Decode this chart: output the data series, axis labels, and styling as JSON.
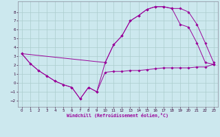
{
  "xlabel": "Windchill (Refroidissement éolien,°C)",
  "background_color": "#cce8ee",
  "line_color": "#990099",
  "grid_color": "#aacccc",
  "xlim": [
    -0.5,
    23.5
  ],
  "ylim": [
    -2.7,
    9.2
  ],
  "xticks": [
    0,
    1,
    2,
    3,
    4,
    5,
    6,
    7,
    8,
    9,
    10,
    11,
    12,
    13,
    14,
    15,
    16,
    17,
    18,
    19,
    20,
    21,
    22,
    23
  ],
  "yticks": [
    -2,
    -1,
    0,
    1,
    2,
    3,
    4,
    5,
    6,
    7,
    8
  ],
  "line1_x": [
    0,
    1,
    2,
    3,
    4,
    5,
    6,
    7,
    8,
    9,
    10,
    11,
    12,
    13,
    14,
    15,
    16,
    17,
    18,
    19,
    20,
    21,
    22,
    23
  ],
  "line1_y": [
    3.3,
    2.2,
    1.4,
    0.8,
    0.2,
    -0.2,
    -0.5,
    -1.8,
    -0.5,
    -1.0,
    1.2,
    1.3,
    1.3,
    1.4,
    1.4,
    1.5,
    1.6,
    1.7,
    1.7,
    1.7,
    1.7,
    1.8,
    1.8,
    2.1
  ],
  "line2_x": [
    0,
    1,
    2,
    3,
    4,
    5,
    6,
    7,
    8,
    9,
    10,
    11,
    12,
    13,
    14,
    15,
    16,
    17,
    18,
    19,
    20,
    21,
    22,
    23
  ],
  "line2_y": [
    3.3,
    2.2,
    1.4,
    0.8,
    0.2,
    -0.2,
    -0.5,
    -1.8,
    -0.5,
    -1.0,
    2.3,
    4.3,
    5.3,
    7.0,
    7.6,
    8.3,
    8.6,
    8.6,
    8.4,
    6.6,
    6.3,
    4.5,
    2.3,
    2.1
  ],
  "line3_x": [
    0,
    10,
    11,
    12,
    13,
    14,
    15,
    16,
    17,
    18,
    19,
    20,
    21,
    22,
    23
  ],
  "line3_y": [
    3.3,
    2.3,
    4.3,
    5.3,
    7.0,
    7.6,
    8.3,
    8.6,
    8.6,
    8.4,
    8.4,
    8.0,
    6.6,
    4.5,
    2.3
  ],
  "marker": "D",
  "markersize": 1.8,
  "linewidth": 0.7,
  "tick_fontsize": 4.0,
  "xlabel_fontsize": 4.8
}
